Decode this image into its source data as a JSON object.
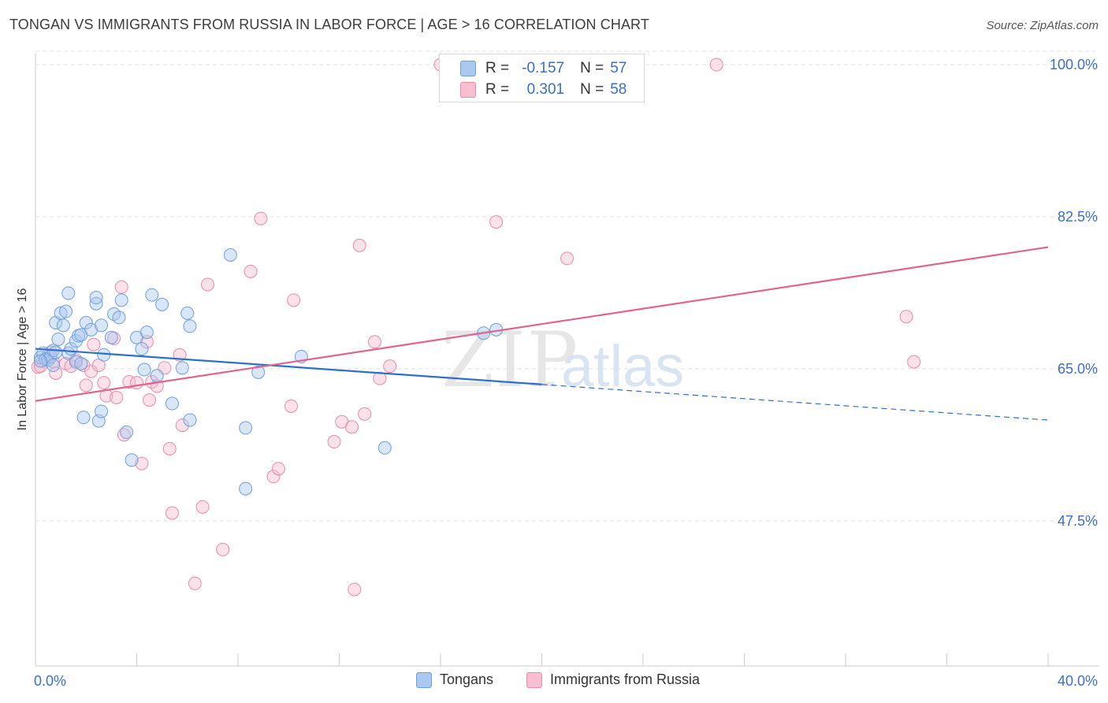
{
  "title": "TONGAN VS IMMIGRANTS FROM RUSSIA IN LABOR FORCE | AGE > 16 CORRELATION CHART",
  "source": "Source: ZipAtlas.com",
  "watermark": {
    "zip": "ZIP",
    "atlas": "atlas"
  },
  "legend_top": [
    {
      "r_label": "R =",
      "r_value": "-0.157",
      "n_label": "N =",
      "n_value": "57"
    },
    {
      "r_label": "R =",
      "r_value": "0.301",
      "n_label": "N =",
      "n_value": "58"
    }
  ],
  "legend_bottom": [
    "Tongans",
    "Immigrants from Russia"
  ],
  "colors": {
    "tongans_fill": "#aac8f0",
    "tongans_stroke": "#6e9fdc",
    "tongans_line": "#2f6fcc",
    "russia_fill": "#f7bfd0",
    "russia_stroke": "#e88aaa",
    "russia_line": "#e0648e",
    "tick_label": "#3a6fc4",
    "grid": "#e2e2e2"
  },
  "chart_data": {
    "type": "scatter",
    "title": "TONGAN VS IMMIGRANTS FROM RUSSIA IN LABOR FORCE | AGE > 16 CORRELATION CHART",
    "xlabel": "",
    "ylabel": "In Labor Force | Age > 16",
    "xlim": [
      0,
      40
    ],
    "ylim": [
      30.8,
      102
    ],
    "x_tick_labels": [
      "0.0%",
      "40.0%"
    ],
    "y_ticks": [
      47.5,
      65.0,
      82.5,
      100.0
    ],
    "y_tick_labels": [
      "47.5%",
      "65.0%",
      "82.5%",
      "100.0%"
    ],
    "grid": true,
    "legend_position": "top-center",
    "series": [
      {
        "name": "Tongans",
        "points": [
          [
            0.2,
            66.3
          ],
          [
            0.3,
            66.8
          ],
          [
            0.4,
            66.1
          ],
          [
            0.5,
            66.0
          ],
          [
            0.6,
            66.4
          ],
          [
            0.7,
            67.1
          ],
          [
            0.7,
            65.4
          ],
          [
            0.8,
            66.9
          ],
          [
            0.8,
            70.3
          ],
          [
            0.9,
            68.4
          ],
          [
            1.0,
            71.4
          ],
          [
            1.1,
            70.0
          ],
          [
            1.2,
            71.6
          ],
          [
            1.3,
            73.7
          ],
          [
            1.3,
            66.8
          ],
          [
            1.4,
            67.3
          ],
          [
            1.6,
            65.8
          ],
          [
            1.6,
            68.2
          ],
          [
            1.7,
            68.8
          ],
          [
            1.8,
            68.9
          ],
          [
            1.8,
            65.6
          ],
          [
            1.9,
            59.4
          ],
          [
            2.0,
            70.3
          ],
          [
            2.2,
            69.5
          ],
          [
            2.4,
            72.5
          ],
          [
            2.4,
            73.2
          ],
          [
            2.5,
            59.0
          ],
          [
            2.6,
            70.0
          ],
          [
            2.6,
            60.1
          ],
          [
            2.7,
            66.6
          ],
          [
            3.0,
            68.6
          ],
          [
            3.1,
            71.3
          ],
          [
            3.3,
            70.9
          ],
          [
            3.4,
            72.9
          ],
          [
            3.6,
            57.7
          ],
          [
            3.8,
            54.5
          ],
          [
            4.0,
            68.6
          ],
          [
            4.2,
            67.3
          ],
          [
            4.3,
            64.9
          ],
          [
            4.4,
            69.2
          ],
          [
            4.6,
            73.5
          ],
          [
            4.8,
            64.2
          ],
          [
            5.0,
            72.4
          ],
          [
            5.4,
            61.0
          ],
          [
            5.8,
            65.1
          ],
          [
            6.0,
            71.4
          ],
          [
            6.1,
            69.9
          ],
          [
            6.1,
            59.1
          ],
          [
            7.7,
            78.1
          ],
          [
            8.3,
            58.2
          ],
          [
            8.3,
            51.2
          ],
          [
            8.8,
            64.6
          ],
          [
            10.5,
            66.4
          ],
          [
            13.8,
            55.9
          ],
          [
            17.7,
            69.1
          ],
          [
            18.2,
            69.5
          ],
          [
            0.2,
            65.9
          ]
        ]
      },
      {
        "name": "Immigrants from Russia",
        "points": [
          [
            0.1,
            65.2
          ],
          [
            0.3,
            65.9
          ],
          [
            0.5,
            66.5
          ],
          [
            0.6,
            66.9
          ],
          [
            0.7,
            65.8
          ],
          [
            0.8,
            64.5
          ],
          [
            1.2,
            65.6
          ],
          [
            1.4,
            65.3
          ],
          [
            1.6,
            66.0
          ],
          [
            1.9,
            65.4
          ],
          [
            2.0,
            63.1
          ],
          [
            2.2,
            64.7
          ],
          [
            2.3,
            67.8
          ],
          [
            2.5,
            65.4
          ],
          [
            2.7,
            63.4
          ],
          [
            2.8,
            61.9
          ],
          [
            3.1,
            68.5
          ],
          [
            3.2,
            61.7
          ],
          [
            3.4,
            74.4
          ],
          [
            3.5,
            57.4
          ],
          [
            3.7,
            63.5
          ],
          [
            4.0,
            63.4
          ],
          [
            4.2,
            54.1
          ],
          [
            4.4,
            68.1
          ],
          [
            4.5,
            61.4
          ],
          [
            4.6,
            63.5
          ],
          [
            4.8,
            63.0
          ],
          [
            5.1,
            65.1
          ],
          [
            5.3,
            55.8
          ],
          [
            5.4,
            48.4
          ],
          [
            5.7,
            66.6
          ],
          [
            5.8,
            58.5
          ],
          [
            6.6,
            49.1
          ],
          [
            6.8,
            74.7
          ],
          [
            6.3,
            40.3
          ],
          [
            7.4,
            44.2
          ],
          [
            8.5,
            76.2
          ],
          [
            8.9,
            82.3
          ],
          [
            9.4,
            52.6
          ],
          [
            9.6,
            53.5
          ],
          [
            10.1,
            60.7
          ],
          [
            10.2,
            72.9
          ],
          [
            11.8,
            56.6
          ],
          [
            12.1,
            58.9
          ],
          [
            12.5,
            58.3
          ],
          [
            12.6,
            39.6
          ],
          [
            12.8,
            79.2
          ],
          [
            13.0,
            59.8
          ],
          [
            13.4,
            68.1
          ],
          [
            13.6,
            63.9
          ],
          [
            14.0,
            65.3
          ],
          [
            16.0,
            100.0
          ],
          [
            18.2,
            81.9
          ],
          [
            21.0,
            77.7
          ],
          [
            26.9,
            100.0
          ],
          [
            34.4,
            71.0
          ],
          [
            34.7,
            65.8
          ],
          [
            0.2,
            65.3
          ]
        ]
      }
    ],
    "trend_lines": [
      {
        "series": "Tongans",
        "solid": {
          "from": [
            0,
            67.3
          ],
          "to": [
            20,
            63.2
          ]
        },
        "dashed": {
          "from": [
            20,
            63.2
          ],
          "to": [
            40,
            59.1
          ]
        }
      },
      {
        "series": "Immigrants from Russia",
        "solid": {
          "from": [
            0,
            61.3
          ],
          "to": [
            40,
            79.0
          ]
        }
      }
    ]
  }
}
